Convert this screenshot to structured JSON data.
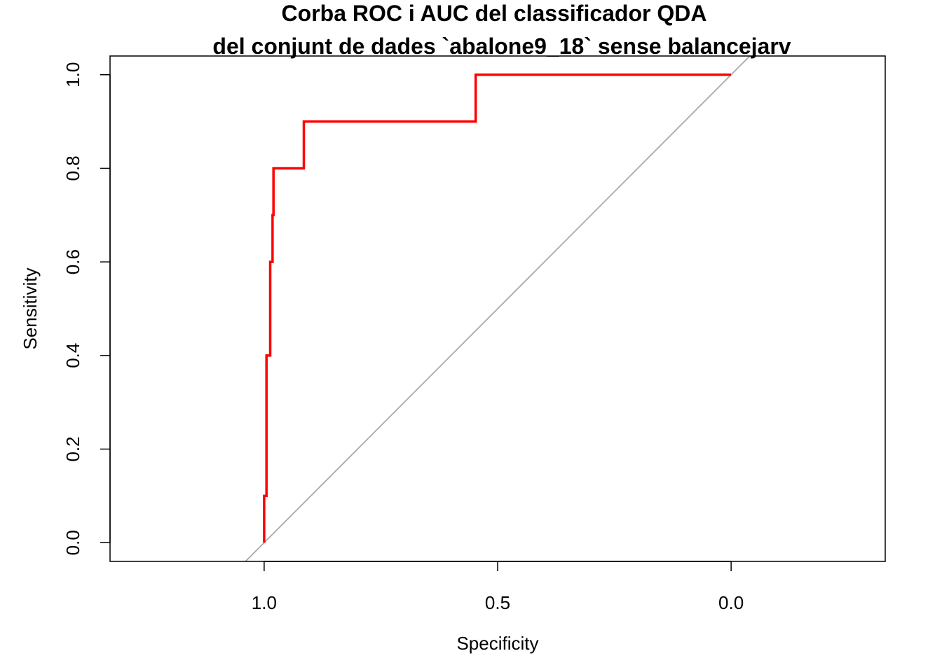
{
  "chart_data": {
    "type": "line",
    "title_lines": [
      "Corba ROC i AUC del classificador QDA",
      "del conjunt de dades `abalone9_18` sense balancejarv"
    ],
    "xlabel": "Specificity",
    "ylabel": "Sensitivity",
    "xlim": [
      1.33,
      -0.33
    ],
    "ylim": [
      -0.04,
      1.04
    ],
    "x_reversed": true,
    "grid": false,
    "x_ticks": [
      1.0,
      0.5,
      0.0
    ],
    "x_tick_labels": [
      "1.0",
      "0.5",
      "0.0"
    ],
    "y_ticks": [
      0.0,
      0.2,
      0.4,
      0.6,
      0.8,
      1.0
    ],
    "y_tick_labels": [
      "0.0",
      "0.2",
      "0.4",
      "0.6",
      "0.8",
      "1.0"
    ],
    "series": [
      {
        "color": "#ff0000",
        "x": [
          1.0,
          1.0,
          0.995,
          0.995,
          0.987,
          0.987,
          0.982,
          0.982,
          0.98,
          0.98,
          0.968,
          0.968,
          0.915,
          0.915,
          0.547,
          0.547,
          0.0
        ],
        "y": [
          0.0,
          0.1,
          0.1,
          0.4,
          0.4,
          0.6,
          0.6,
          0.7,
          0.7,
          0.8,
          0.8,
          0.8,
          0.8,
          0.9,
          0.9,
          1.0,
          1.0
        ]
      }
    ],
    "reference_line": {
      "color": "#aaaaaa",
      "x": [
        1.0,
        0.0
      ],
      "y": [
        0.0,
        1.0
      ]
    }
  }
}
